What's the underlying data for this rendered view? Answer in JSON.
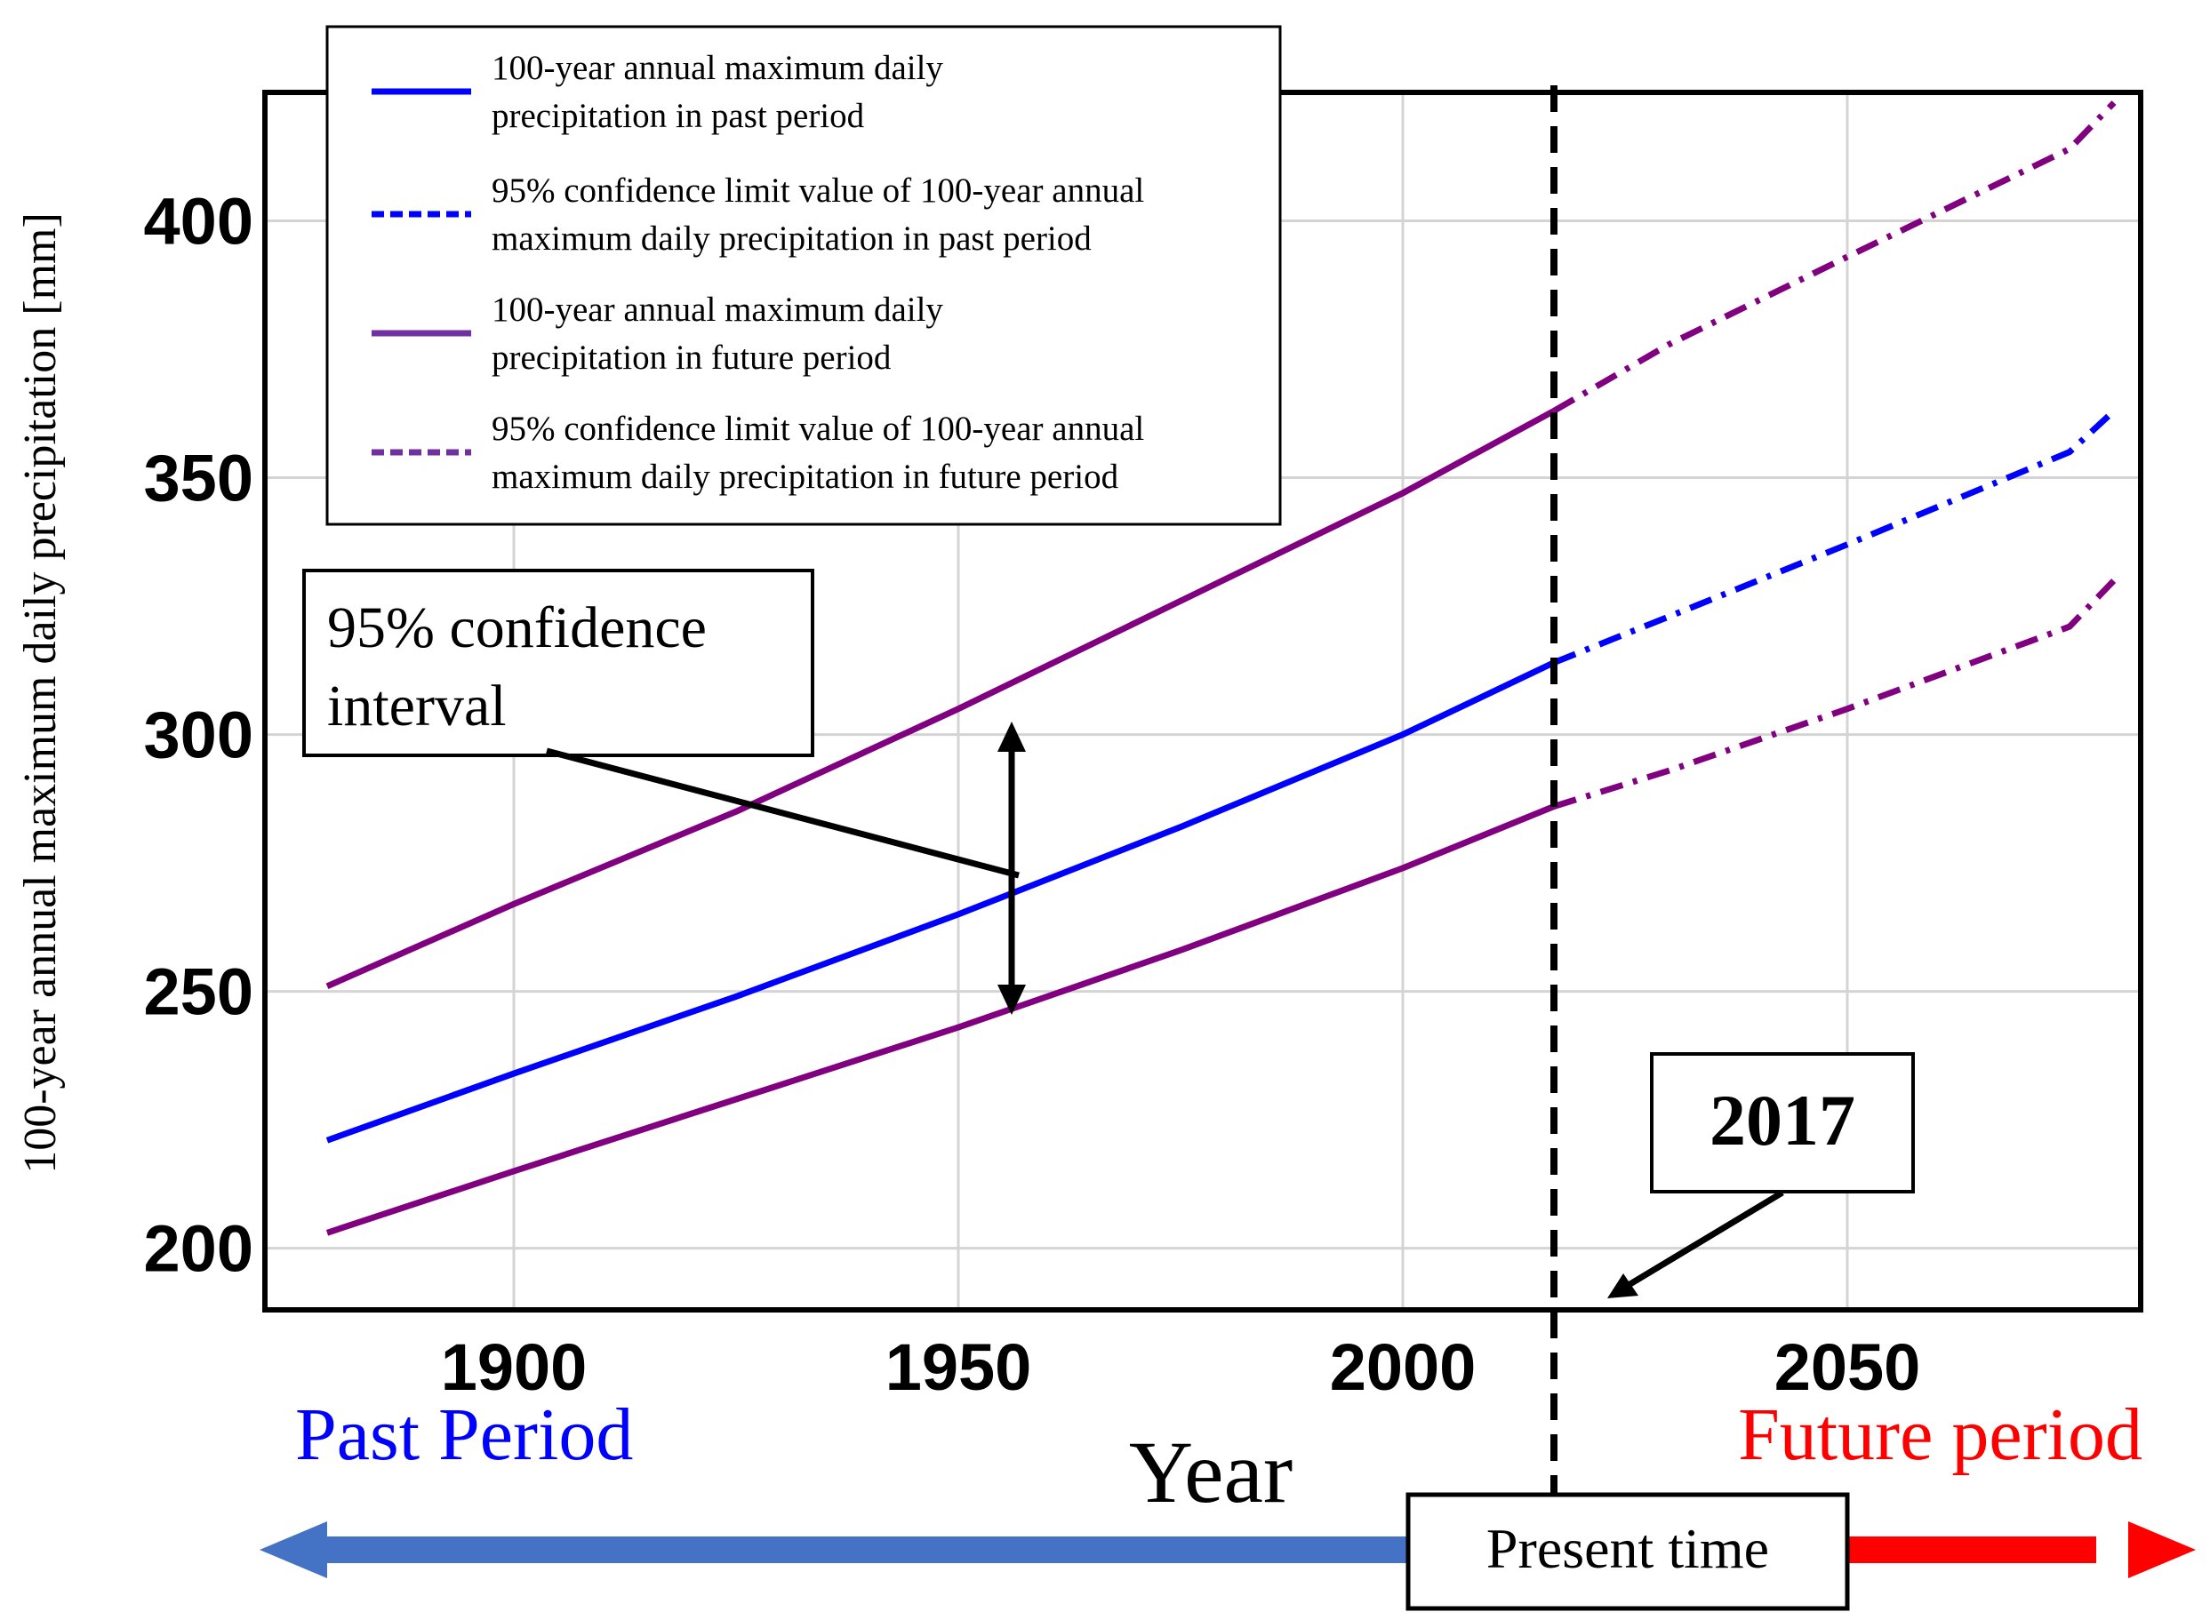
{
  "chart_data": {
    "type": "line",
    "title": "",
    "xlabel": "Year",
    "ylabel": "100-year  annual maximum daily precipitation [mm]",
    "xlim": [
      1872,
      2083
    ],
    "ylim": [
      188,
      425
    ],
    "xticks": [
      "1900",
      "1950",
      "2000",
      "2050"
    ],
    "yticks": [
      "200",
      "250",
      "300",
      "350",
      "400"
    ],
    "grid": true,
    "legend_position": "top-left",
    "legend": [
      "100-year annual maximum daily precipitation in past period",
      "95% confidence limit value of 100-year annual maximum daily precipitation in past period",
      "100-year annual maximum daily precipitation in future period",
      "95% confidence limit value of 100-year annual maximum daily precipitation in future period"
    ],
    "series": [
      {
        "name": "100-year annual maximum daily precipitation in past period",
        "role": "estimate",
        "color": "#0000ff",
        "past": {
          "x": [
            1879,
            1900,
            1925,
            1950,
            1975,
            2000,
            2017
          ],
          "y": [
            221,
            234,
            249,
            265,
            282,
            300,
            314
          ]
        },
        "future": {
          "x": [
            2017,
            2030,
            2050,
            2075,
            2080
          ],
          "y": [
            314,
            323,
            337,
            355,
            363
          ]
        }
      },
      {
        "name": "95% confidence limit value",
        "role": "upper limit",
        "color": "#800080",
        "past": {
          "x": [
            1879,
            1900,
            1925,
            1950,
            1975,
            2000,
            2017
          ],
          "y": [
            251,
            267,
            285,
            305,
            326,
            347,
            363
          ]
        },
        "future": {
          "x": [
            2017,
            2030,
            2050,
            2075,
            2080
          ],
          "y": [
            363,
            376,
            393,
            414,
            423
          ]
        }
      },
      {
        "name": "95% confidence limit value",
        "role": "lower limit",
        "color": "#800080",
        "past": {
          "x": [
            1879,
            1900,
            1925,
            1950,
            1975,
            2000,
            2017
          ],
          "y": [
            203,
            215,
            229,
            243,
            258,
            274,
            286
          ]
        },
        "future": {
          "x": [
            2017,
            2030,
            2050,
            2075,
            2080
          ],
          "y": [
            286,
            293,
            305,
            321,
            330
          ]
        }
      }
    ],
    "present_year": 2017,
    "annotations": {
      "confidence_interval": "95% confidence\ninterval",
      "year_box": "2017",
      "past_label": "Past Period",
      "future_label": "Future period",
      "present_label": "Present time"
    }
  }
}
